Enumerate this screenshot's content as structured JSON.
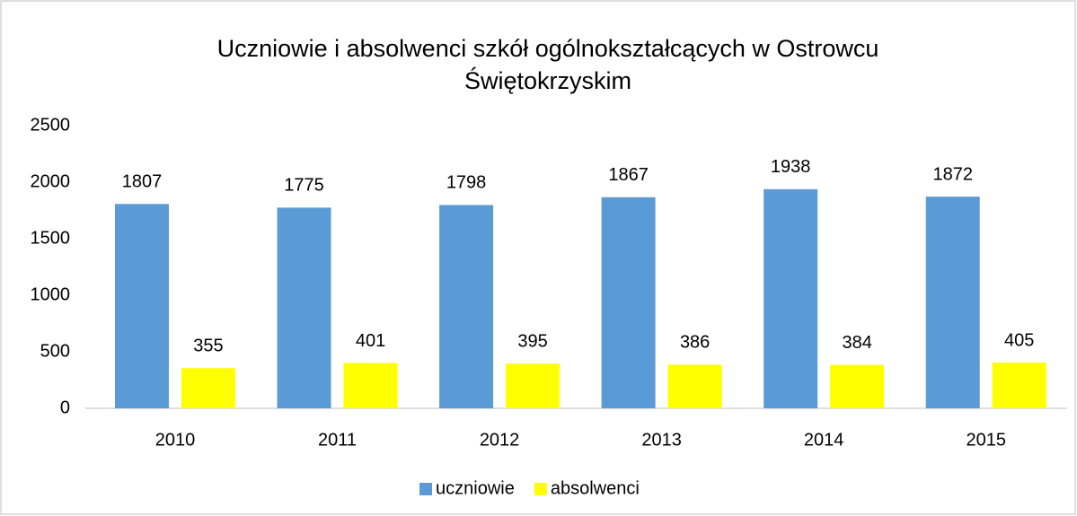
{
  "chart_data": {
    "type": "bar",
    "title": "Uczniowie i absolwenci szkół ogólnokształcących w Ostrowcu Świętokrzyskim",
    "categories": [
      "2010",
      "2011",
      "2012",
      "2013",
      "2014",
      "2015"
    ],
    "series": [
      {
        "name": "uczniowie",
        "color": "#5b9bd5",
        "values": [
          1807,
          1775,
          1798,
          1867,
          1938,
          1872
        ]
      },
      {
        "name": "absolwenci",
        "color": "#ffff00",
        "values": [
          355,
          401,
          395,
          386,
          384,
          405
        ]
      }
    ],
    "ylim": [
      0,
      2500
    ],
    "yticks": [
      0,
      500,
      1000,
      1500,
      2000,
      2500
    ],
    "grid": false,
    "legend": "bottom"
  }
}
